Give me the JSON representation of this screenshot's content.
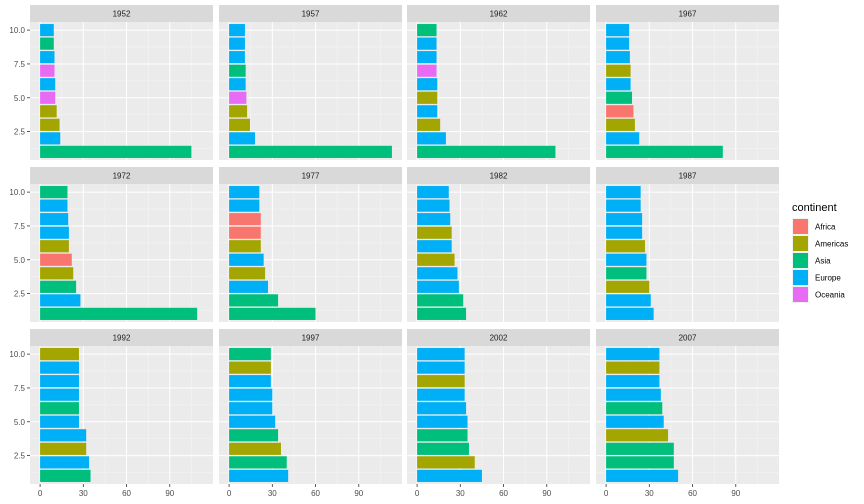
{
  "chart_data": {
    "type": "bar",
    "orientation": "horizontal",
    "facet_by": "year",
    "facets": [
      {
        "title": "1952",
        "values": [
          105,
          14,
          13.5,
          11.5,
          10.5,
          10.5,
          10,
          10,
          9.5,
          9.5
        ],
        "continents": [
          "Asia",
          "Europe",
          "Americas",
          "Americas",
          "Oceania",
          "Europe",
          "Oceania",
          "Europe",
          "Asia",
          "Europe"
        ]
      },
      {
        "title": "1957",
        "values": [
          113,
          18,
          14.5,
          12.5,
          12,
          11.5,
          11.5,
          11,
          11,
          11
        ],
        "continents": [
          "Asia",
          "Europe",
          "Americas",
          "Americas",
          "Oceania",
          "Europe",
          "Asia",
          "Europe",
          "Europe",
          "Europe"
        ]
      },
      {
        "title": "1962",
        "values": [
          96,
          20,
          16,
          14,
          14,
          14,
          13.5,
          13.5,
          13.5,
          13.5
        ],
        "continents": [
          "Asia",
          "Europe",
          "Americas",
          "Europe",
          "Americas",
          "Europe",
          "Oceania",
          "Europe",
          "Europe",
          "Asia"
        ]
      },
      {
        "title": "1967",
        "values": [
          81,
          23,
          20,
          19,
          18,
          17,
          17,
          16.5,
          16,
          16
        ],
        "continents": [
          "Asia",
          "Europe",
          "Americas",
          "Africa",
          "Asia",
          "Europe",
          "Americas",
          "Europe",
          "Europe",
          "Europe"
        ]
      },
      {
        "title": "1972",
        "values": [
          109,
          28,
          25,
          23,
          22,
          20,
          20,
          19.5,
          19,
          19
        ],
        "continents": [
          "Asia",
          "Europe",
          "Asia",
          "Americas",
          "Africa",
          "Americas",
          "Europe",
          "Europe",
          "Europe",
          "Asia"
        ]
      },
      {
        "title": "1977",
        "values": [
          60,
          34,
          27,
          25,
          24,
          22,
          22,
          22,
          21,
          21
        ],
        "continents": [
          "Asia",
          "Asia",
          "Europe",
          "Americas",
          "Europe",
          "Americas",
          "Africa",
          "Africa",
          "Europe",
          "Europe"
        ]
      },
      {
        "title": "1982",
        "values": [
          34,
          32,
          29,
          28,
          26,
          24,
          24,
          23,
          22.5,
          22
        ],
        "continents": [
          "Asia",
          "Asia",
          "Europe",
          "Europe",
          "Americas",
          "Europe",
          "Americas",
          "Europe",
          "Europe",
          "Europe"
        ]
      },
      {
        "title": "1987",
        "values": [
          33,
          31,
          30,
          28,
          28,
          27,
          25,
          25,
          24,
          24
        ],
        "continents": [
          "Europe",
          "Europe",
          "Americas",
          "Asia",
          "Europe",
          "Americas",
          "Europe",
          "Europe",
          "Europe",
          "Europe"
        ]
      },
      {
        "title": "1992",
        "values": [
          35,
          34,
          32,
          32,
          27,
          27,
          27,
          27,
          27,
          27
        ],
        "continents": [
          "Asia",
          "Europe",
          "Americas",
          "Europe",
          "Europe",
          "Asia",
          "Europe",
          "Europe",
          "Europe",
          "Americas"
        ]
      },
      {
        "title": "1997",
        "values": [
          41,
          40,
          36,
          34,
          32,
          30,
          30,
          29,
          29,
          29
        ],
        "continents": [
          "Europe",
          "Asia",
          "Americas",
          "Asia",
          "Europe",
          "Europe",
          "Europe",
          "Europe",
          "Americas",
          "Asia"
        ]
      },
      {
        "title": "2002",
        "values": [
          45,
          40,
          36,
          35,
          35,
          34,
          33,
          33,
          33,
          33
        ],
        "continents": [
          "Europe",
          "Americas",
          "Asia",
          "Asia",
          "Europe",
          "Europe",
          "Europe",
          "Americas",
          "Europe",
          "Europe"
        ]
      },
      {
        "title": "2007",
        "values": [
          50,
          47,
          47,
          43,
          40,
          39,
          38,
          37,
          37,
          37
        ],
        "continents": [
          "Europe",
          "Asia",
          "Asia",
          "Americas",
          "Europe",
          "Asia",
          "Europe",
          "Europe",
          "Americas",
          "Europe"
        ]
      }
    ],
    "y_ticks": [
      "10.0",
      "7.5",
      "5.0",
      "2.5"
    ],
    "x_ticks": [
      "0",
      "30",
      "60",
      "90"
    ],
    "xlim": [
      -7,
      120
    ],
    "ylim": [
      0.4,
      10.6
    ],
    "grid": true,
    "legend": {
      "title": "continent",
      "position": "right",
      "entries": [
        {
          "label": "Africa",
          "color": "#F8766D"
        },
        {
          "label": "Americas",
          "color": "#A3A500"
        },
        {
          "label": "Asia",
          "color": "#00BF7D"
        },
        {
          "label": "Europe",
          "color": "#00B0F6"
        },
        {
          "label": "Oceania",
          "color": "#E76BF3"
        }
      ]
    }
  }
}
